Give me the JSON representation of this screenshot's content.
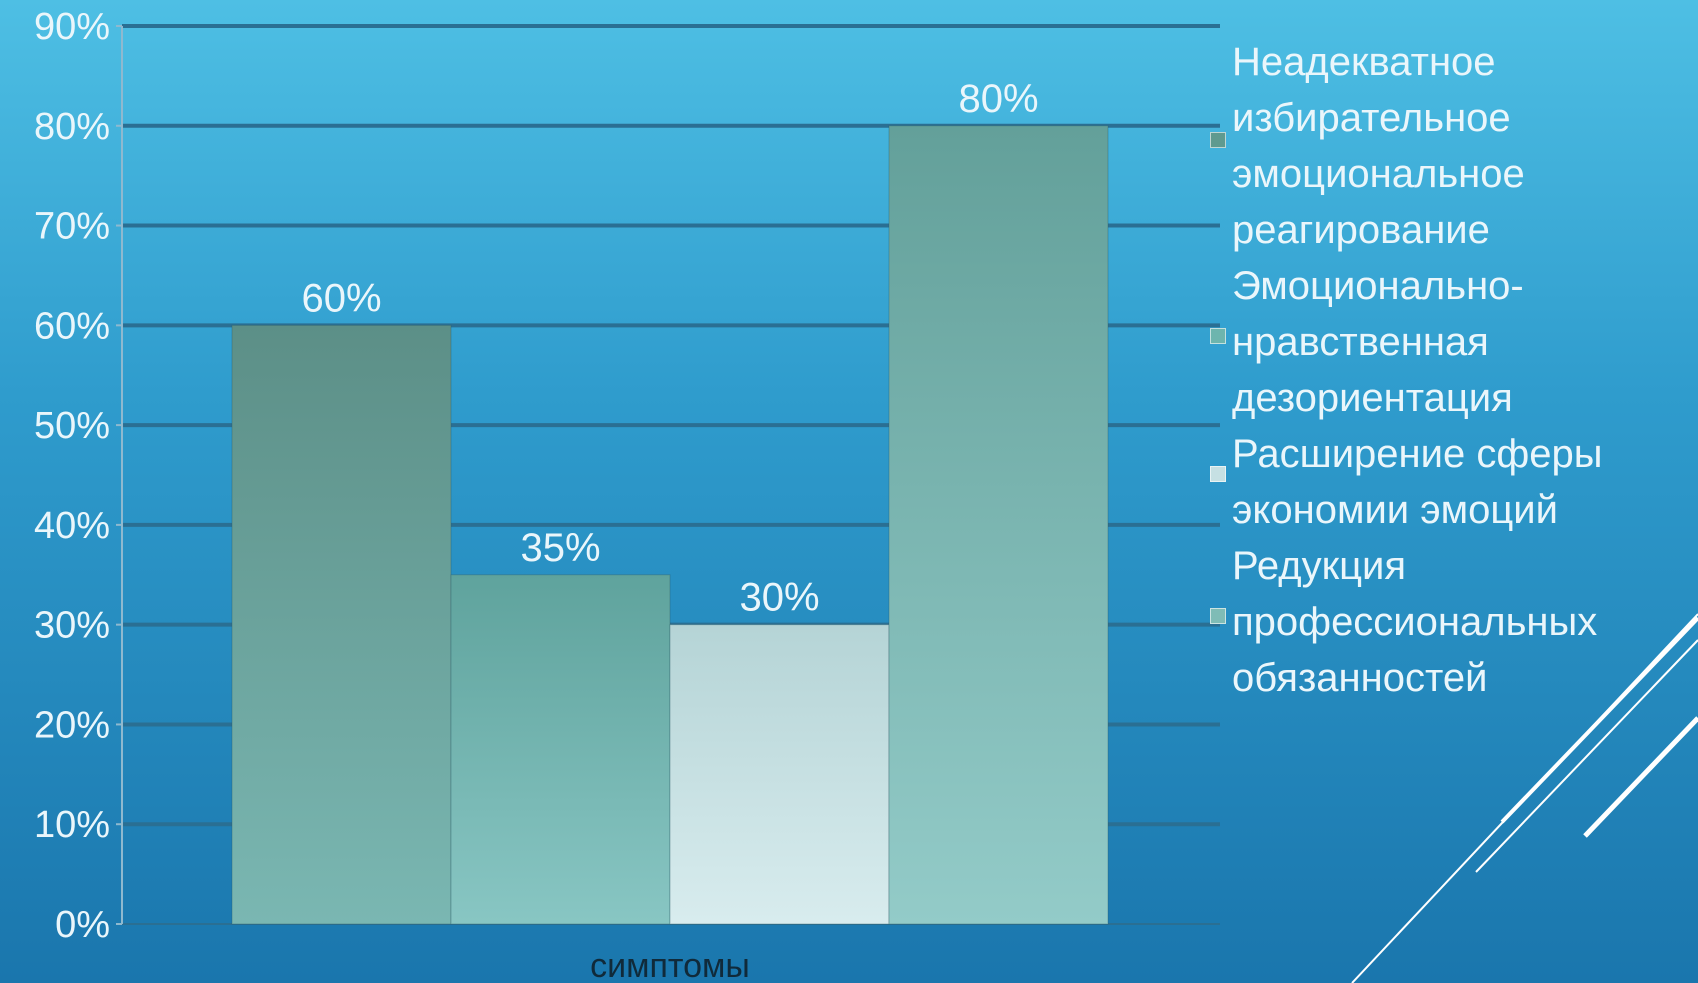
{
  "chart_data": {
    "type": "bar",
    "title": "",
    "xlabel": "симптомы",
    "ylabel": "",
    "ylim": [
      0,
      0.9
    ],
    "yticks": [
      "0%",
      "10%",
      "20%",
      "30%",
      "40%",
      "50%",
      "60%",
      "70%",
      "80%",
      "90%"
    ],
    "grid": true,
    "legend_position": "right",
    "categories": [
      "симптомы"
    ],
    "series": [
      {
        "name": "Неадекватное избирательное эмоциональное реагирование",
        "values": [
          0.6
        ],
        "label": "60%",
        "color": "#5f9a8f"
      },
      {
        "name": "Эмоционально-нравственная дезориентация",
        "values": [
          0.35
        ],
        "label": "35%",
        "color": "#6db5ae"
      },
      {
        "name": "Расширение сферы экономии эмоций",
        "values": [
          0.3
        ],
        "label": "30%",
        "color": "#c6e0e3"
      },
      {
        "name": "Редукция профессиональных обязанностей",
        "values": [
          0.8
        ],
        "label": "80%",
        "color": "#7fbcb6"
      }
    ]
  },
  "colors": {
    "background_top": "#4ebfe4",
    "background_bottom": "#1a76ad",
    "gridline": "#2a6f93",
    "text": "#eaf6fb"
  }
}
